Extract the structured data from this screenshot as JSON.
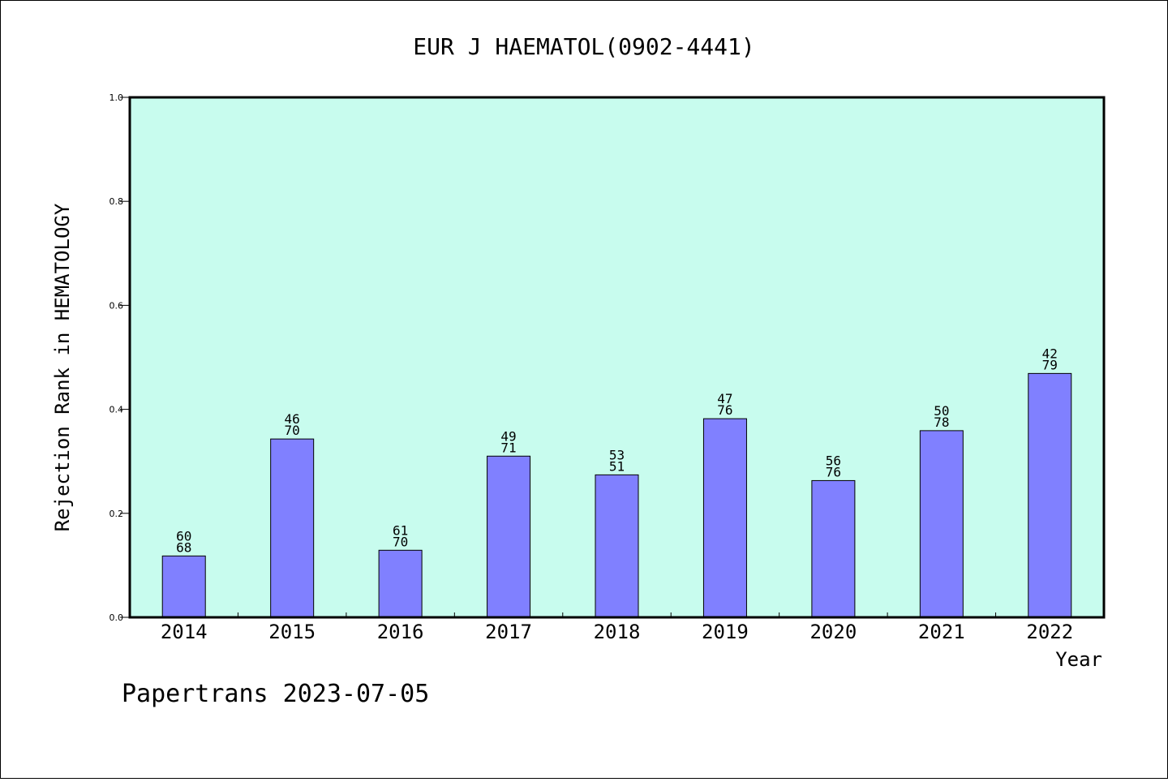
{
  "chart_data": {
    "type": "bar",
    "title": "EUR J HAEMATOL(0902-4441)",
    "xlabel": "Year",
    "ylabel": "Rejection Rank in HEMATOLOGY",
    "ylim": [
      0,
      1.0
    ],
    "yticks": [
      "0.0",
      "0.2",
      "0.4",
      "0.6",
      "0.8",
      "1.0"
    ],
    "categories": [
      "2014",
      "2015",
      "2016",
      "2017",
      "2018",
      "2019",
      "2020",
      "2021",
      "2022"
    ],
    "values": [
      0.118,
      0.343,
      0.129,
      0.31,
      0.274,
      0.382,
      0.263,
      0.359,
      0.469
    ],
    "labels_top": [
      "60",
      "46",
      "61",
      "49",
      "53",
      "47",
      "56",
      "50",
      "42"
    ],
    "labels_bottom": [
      "68",
      "70",
      "70",
      "71",
      "51",
      "76",
      "76",
      "78",
      "79"
    ],
    "grid": false,
    "legend": "none",
    "colors": {
      "plot_background": "#c8fcee",
      "bar_fill": "#8080ff",
      "bar_stroke": "#000000"
    }
  },
  "footer": {
    "text": "Papertrans 2023-07-05"
  }
}
